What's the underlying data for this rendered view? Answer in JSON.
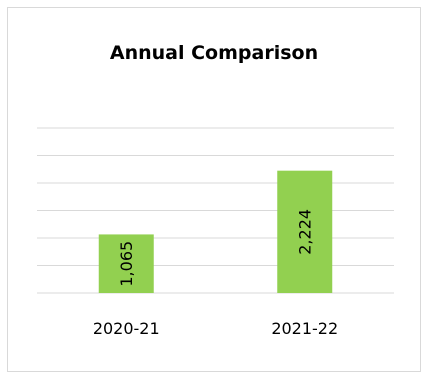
{
  "chart_data": {
    "type": "bar",
    "title": "Annual Comparison",
    "categories": [
      "2020-21",
      "2021-22"
    ],
    "values": [
      1065,
      2224
    ],
    "value_labels": [
      "1,065",
      "2,224"
    ],
    "ylim": [
      0,
      3000
    ],
    "gridlines": [
      500,
      1000,
      1500,
      2000,
      2500,
      3000
    ],
    "grid": true,
    "legend": "none",
    "bar_color": "#92d050",
    "grid_color": "#d9d9d9"
  }
}
